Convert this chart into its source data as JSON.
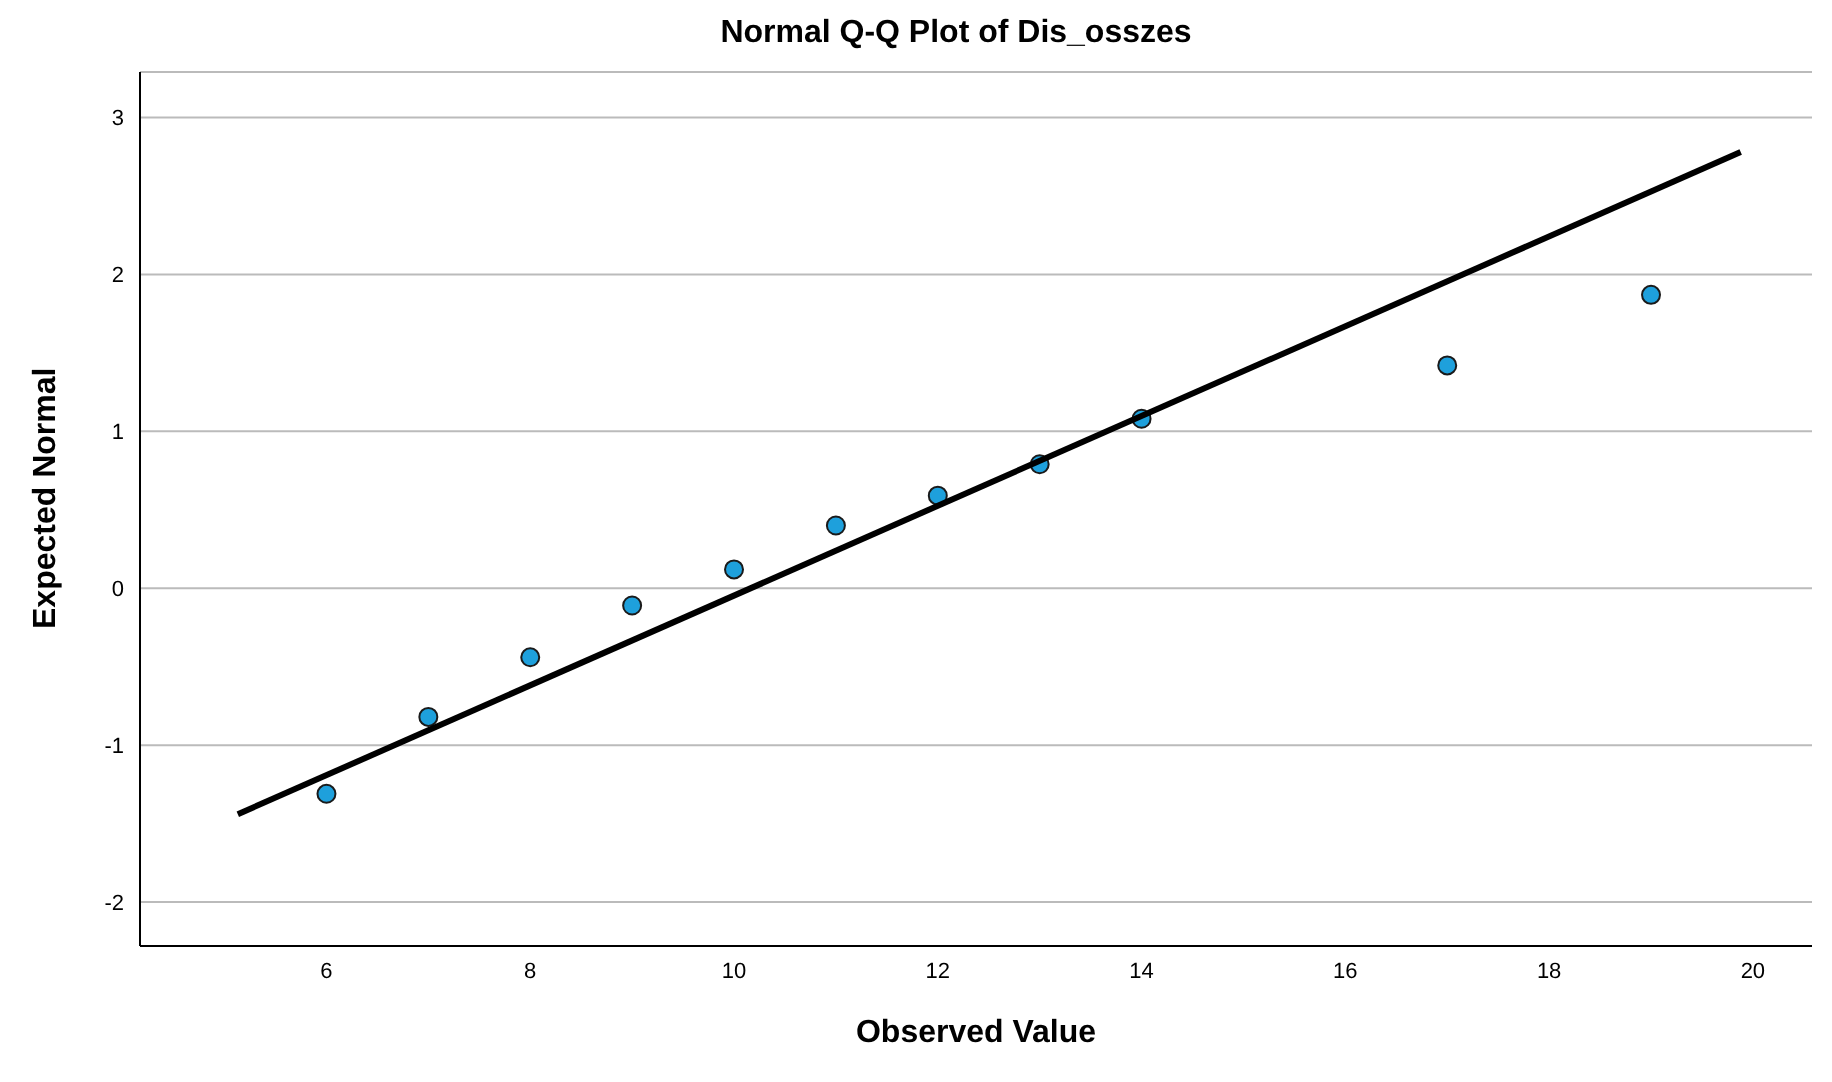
{
  "chart_data": {
    "type": "scatter",
    "title": "Normal Q-Q Plot of Dis_osszes",
    "xlabel": "Observed Value",
    "ylabel": "Expected Normal",
    "xlim": [
      4.17,
      20.58
    ],
    "xticks": [
      6,
      8,
      10,
      12,
      14,
      16,
      18,
      20
    ],
    "ylim": [
      -2.28,
      3.29
    ],
    "yticks": [
      -2,
      -1,
      0,
      1,
      2,
      3
    ],
    "grid": "y",
    "marker": "circle",
    "series": [
      {
        "color": "#1ea0dc",
        "x": [
          6,
          7,
          8,
          9,
          10,
          11,
          12,
          13,
          14,
          17,
          19
        ],
        "values": [
          -1.31,
          -0.82,
          -0.44,
          -0.11,
          0.12,
          0.4,
          0.59,
          0.79,
          1.08,
          1.42,
          1.87
        ]
      },
      {
        "type": "line",
        "color": "#000000",
        "x": [
          5.13,
          19.88
        ],
        "values": [
          -1.44,
          2.78
        ],
        "marker": "none",
        "line_style": "solid"
      }
    ]
  }
}
